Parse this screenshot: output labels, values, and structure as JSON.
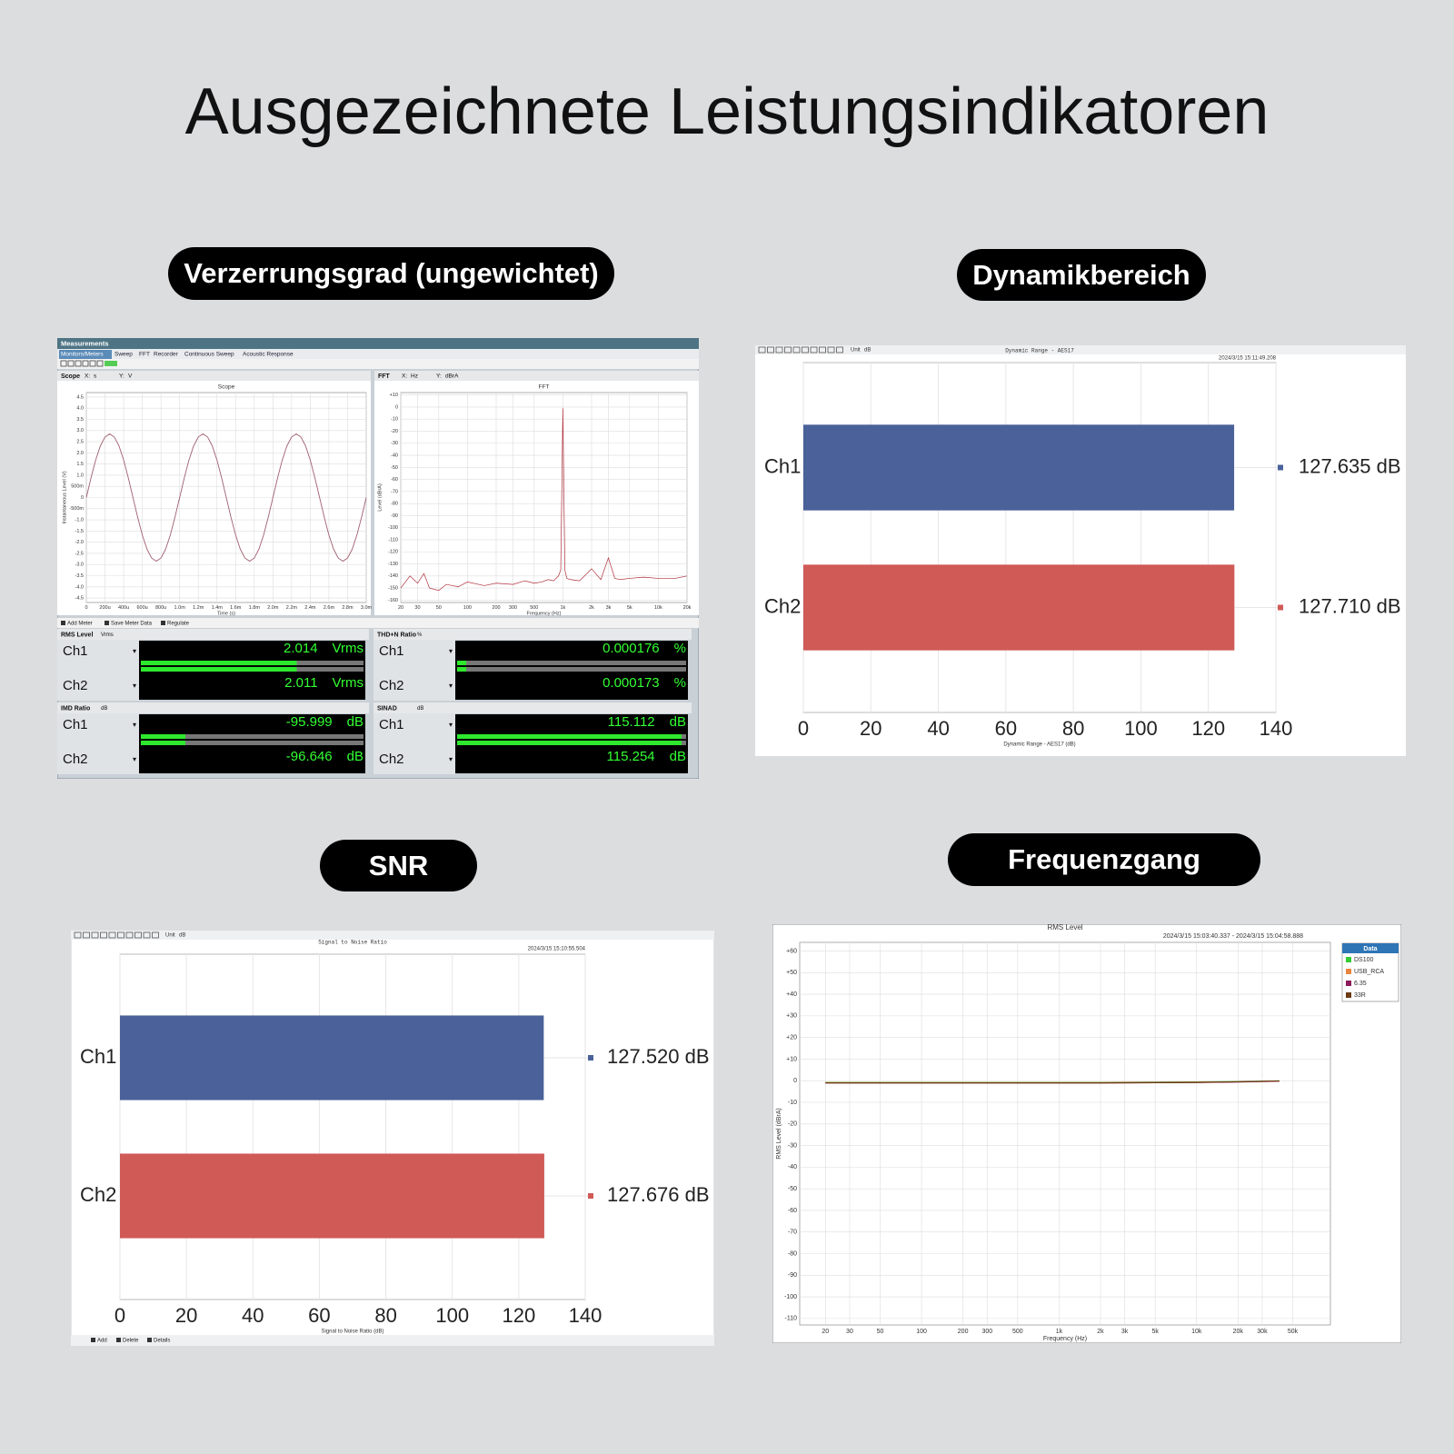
{
  "title": "Ausgezeichnete Leistungsindikatoren",
  "badges": [
    "Verzerrungsgrad (ungewichtet)",
    "Dynamikbereich",
    "SNR",
    "Frequenzgang"
  ],
  "meters": {
    "window_title": "Measurements",
    "tabs": [
      "Monitors/Meters",
      "Sweep",
      "FFT",
      "Recorder",
      "Continuous Sweep",
      "Acoustic Response"
    ],
    "toolbar": [
      "Add Meter",
      "Save Meter Data",
      "Regulate"
    ],
    "scope_header": {
      "name": "Scope",
      "x_label": "X:",
      "x_unit": "s",
      "y_label": "Y:",
      "y_unit": "V"
    },
    "fft_header": {
      "name": "FFT",
      "x_label": "X:",
      "x_unit": "Hz",
      "y_label": "Y:",
      "y_unit": "dBrA"
    },
    "items": [
      {
        "name": "RMS Level",
        "unit": "Vrms",
        "channels": [
          {
            "name": "Ch1",
            "value": 2.014
          },
          {
            "name": "Ch2",
            "value": 2.011
          }
        ]
      },
      {
        "name": "THD+N Ratio",
        "unit": "%",
        "channels": [
          {
            "name": "Ch1",
            "value": 0.000176
          },
          {
            "name": "Ch2",
            "value": 0.000173
          }
        ]
      },
      {
        "name": "IMD Ratio",
        "unit": "dB",
        "channels": [
          {
            "name": "Ch1",
            "value": -95.999
          },
          {
            "name": "Ch2",
            "value": -96.646
          }
        ]
      },
      {
        "name": "SINAD",
        "unit": "dB",
        "channels": [
          {
            "name": "Ch1",
            "value": 115.112
          },
          {
            "name": "Ch2",
            "value": 115.254
          }
        ]
      }
    ]
  },
  "dynamic_toolbar": {
    "label": "Unit",
    "value": "dB"
  },
  "snr_toolbar": {
    "label": "Unit",
    "value": "dB",
    "actions": [
      "Add",
      "Delete",
      "Details"
    ]
  },
  "chart_data": [
    {
      "type": "line",
      "title": "Scope",
      "xlabel": "Time (s)",
      "ylabel": "Instantaneous Level (V)",
      "color": "#a06070",
      "grid": true,
      "x": [
        0,
        5e-05,
        0.0001,
        0.00015,
        0.0002,
        0.00025,
        0.0003,
        0.00035,
        0.0004,
        0.00045,
        0.0005,
        0.00055,
        0.0006,
        0.00065,
        0.0007,
        0.00075,
        0.0008,
        0.00085,
        0.0009,
        0.00095,
        0.001,
        0.00105,
        0.0011,
        0.00115,
        0.0012,
        0.00125,
        0.0013,
        0.00135,
        0.0014,
        0.00145,
        0.0015,
        0.00155,
        0.0016,
        0.00165,
        0.0017,
        0.00175,
        0.0018,
        0.00185,
        0.0019,
        0.00195,
        0.002,
        0.00205,
        0.0021,
        0.00215,
        0.0022,
        0.00225,
        0.0023,
        0.00235,
        0.0024,
        0.00245,
        0.0025,
        0.00255,
        0.0026,
        0.00265,
        0.0027,
        0.00275,
        0.0028,
        0.00285,
        0.0029,
        0.00295,
        0.003
      ],
      "values": [
        0,
        0.88,
        1.68,
        2.31,
        2.71,
        2.85,
        2.71,
        2.31,
        1.68,
        0.88,
        0,
        -0.88,
        -1.68,
        -2.31,
        -2.71,
        -2.85,
        -2.71,
        -2.31,
        -1.68,
        -0.88,
        0,
        0.88,
        1.68,
        2.31,
        2.71,
        2.85,
        2.71,
        2.31,
        1.68,
        0.88,
        0,
        -0.88,
        -1.68,
        -2.31,
        -2.71,
        -2.85,
        -2.71,
        -2.31,
        -1.68,
        -0.88,
        0,
        0.88,
        1.68,
        2.31,
        2.71,
        2.85,
        2.71,
        2.31,
        1.68,
        0.88,
        0,
        -0.88,
        -1.68,
        -2.31,
        -2.71,
        -2.85,
        -2.71,
        -2.31,
        -1.68,
        -0.88,
        0
      ],
      "xlim": [
        0,
        0.003
      ],
      "ylim": [
        -4.7,
        4.7
      ],
      "xticks": [
        0,
        {
          "value": 0.0002,
          "label": "200u"
        },
        {
          "value": 0.0004,
          "label": "400u"
        },
        {
          "value": 0.0006,
          "label": "600u"
        },
        {
          "value": 0.0008,
          "label": "800u"
        },
        {
          "value": 0.001,
          "label": "1.0m"
        },
        {
          "value": 0.0012,
          "label": "1.2m"
        },
        {
          "value": 0.0014,
          "label": "1.4m"
        },
        {
          "value": 0.0016,
          "label": "1.6m"
        },
        {
          "value": 0.0018,
          "label": "1.8m"
        },
        {
          "value": 0.002,
          "label": "2.0m"
        },
        {
          "value": 0.0022,
          "label": "2.2m"
        },
        {
          "value": 0.0024,
          "label": "2.4m"
        },
        {
          "value": 0.0026,
          "label": "2.6m"
        },
        {
          "value": 0.0028,
          "label": "2.8m"
        },
        {
          "value": 0.003,
          "label": "3.0m"
        }
      ],
      "yticks": [
        4.5,
        {
          "value": 4,
          "label": "4.0"
        },
        3.5,
        {
          "value": 3,
          "label": "3.0"
        },
        2.5,
        {
          "value": 2,
          "label": "2.0"
        },
        1.5,
        {
          "value": 1,
          "label": "1.0"
        },
        {
          "value": 0.5,
          "label": "500m"
        },
        0,
        {
          "value": -0.5,
          "label": "-500m"
        },
        {
          "value": -1,
          "label": "-1.0"
        },
        -1.5,
        {
          "value": -2,
          "label": "-2.0"
        },
        -2.5,
        {
          "value": -3,
          "label": "-3.0"
        },
        -3.5,
        {
          "value": -4,
          "label": "-4.0"
        },
        -4.5
      ]
    },
    {
      "type": "line",
      "title": "FFT",
      "xlabel": "Frequency (Hz)",
      "ylabel": "Level (dBrA)",
      "color": "#b0303c",
      "grid": true,
      "log_x": true,
      "x": [
        20,
        25,
        30,
        35,
        40,
        50,
        60,
        80,
        100,
        150,
        200,
        300,
        400,
        500,
        600,
        700,
        800,
        900,
        950,
        1000,
        1050,
        1100,
        1200,
        1500,
        2000,
        2500,
        3000,
        3500,
        4000,
        5000,
        7000,
        10000,
        15000,
        20000
      ],
      "values": [
        -150,
        -140,
        -146,
        -138,
        -150,
        -152,
        -147,
        -149,
        -145,
        -148,
        -146,
        -147,
        -144,
        -146,
        -145,
        -143,
        -144,
        -140,
        -135,
        -1,
        -135,
        -142,
        -143,
        -144,
        -134,
        -143,
        -125,
        -142,
        -143,
        -142,
        -141,
        -142,
        -142,
        -140
      ],
      "xlim": [
        20,
        20000
      ],
      "ylim": [
        -162,
        12
      ],
      "xticks": [
        20,
        30,
        50,
        100,
        200,
        300,
        500,
        {
          "value": 1000,
          "label": "1k"
        },
        {
          "value": 2000,
          "label": "2k"
        },
        {
          "value": 3000,
          "label": "3k"
        },
        {
          "value": 5000,
          "label": "5k"
        },
        {
          "value": 10000,
          "label": "10k"
        },
        {
          "value": 20000,
          "label": "20k"
        }
      ],
      "yticks": [
        {
          "value": 10,
          "label": "+10"
        },
        0,
        -10,
        -20,
        -30,
        -40,
        -50,
        -60,
        -70,
        -80,
        -90,
        -100,
        -110,
        -120,
        -130,
        -140,
        -150,
        -160
      ]
    },
    {
      "type": "bar",
      "orientation": "horizontal",
      "title": "Dynamic Range - AES17",
      "subtitle": "2024/3/15 15:11:49.208",
      "xlabel": "Dynamic Range - AES17 (dB)",
      "grid": true,
      "categories": [
        "Ch1",
        "Ch2"
      ],
      "values": [
        127.635,
        127.71
      ],
      "value_labels": [
        "127.635 dB",
        "127.710 dB"
      ],
      "colors": [
        "#4a6199",
        "#d05a56"
      ],
      "xlim": [
        0,
        140
      ],
      "xticks": [
        0,
        20,
        40,
        60,
        80,
        100,
        120,
        140
      ]
    },
    {
      "type": "bar",
      "orientation": "horizontal",
      "title": "Signal to Noise Ratio",
      "subtitle": "2024/3/15 15:10:55.504",
      "xlabel": "Signal to Noise Ratio (dB)",
      "grid": true,
      "categories": [
        "Ch1",
        "Ch2"
      ],
      "values": [
        127.52,
        127.676
      ],
      "value_labels": [
        "127.520 dB",
        "127.676 dB"
      ],
      "colors": [
        "#4a6199",
        "#d05a56"
      ],
      "xlim": [
        0,
        140
      ],
      "xticks": [
        0,
        20,
        40,
        60,
        80,
        100,
        120,
        140
      ]
    },
    {
      "type": "line",
      "title": "RMS Level",
      "subtitle": "2024/3/15 15:03:40.337 -  2024/3/15 15:04:58.888",
      "xlabel": "Frequency (Hz)",
      "ylabel": "RMS Level (dBrA)",
      "grid": true,
      "log_x": true,
      "legend_title": "Data",
      "legend": "right",
      "x": [
        20,
        30,
        50,
        100,
        200,
        500,
        1000,
        2000,
        5000,
        10000,
        20000,
        40000
      ],
      "series": [
        {
          "name": "DS100",
          "color": "#33cc33",
          "values": [
            -0.8,
            -0.8,
            -0.8,
            -0.8,
            -0.8,
            -0.8,
            -0.8,
            -0.8,
            -0.7,
            -0.6,
            -0.4,
            -0.1
          ]
        },
        {
          "name": "USB_RCA",
          "color": "#e8843c",
          "values": [
            -0.9,
            -0.9,
            -0.9,
            -0.9,
            -0.9,
            -0.9,
            -0.9,
            -0.9,
            -0.8,
            -0.7,
            -0.5,
            -0.2
          ]
        },
        {
          "name": "6.35",
          "color": "#8b1a5a",
          "values": [
            -1,
            -1,
            -1,
            -1,
            -1,
            -1,
            -1,
            -1,
            -0.9,
            -0.8,
            -0.6,
            -0.2
          ]
        },
        {
          "name": "33R",
          "color": "#6b3a10",
          "values": [
            -1,
            -1,
            -1,
            -1,
            -1,
            -1,
            -1,
            -1,
            -0.9,
            -0.8,
            -0.5,
            -0.1
          ]
        }
      ],
      "xlim": [
        13,
        94000
      ],
      "ylim": [
        -113,
        64
      ],
      "xticks": [
        20,
        30,
        50,
        100,
        200,
        300,
        500,
        {
          "value": 1000,
          "label": "1k"
        },
        {
          "value": 2000,
          "label": "2k"
        },
        {
          "value": 3000,
          "label": "3k"
        },
        {
          "value": 5000,
          "label": "5k"
        },
        {
          "value": 10000,
          "label": "10k"
        },
        {
          "value": 20000,
          "label": "20k"
        },
        {
          "value": 30000,
          "label": "30k"
        },
        {
          "value": 50000,
          "label": "50k"
        }
      ],
      "yticks": [
        {
          "value": 60,
          "label": "+60"
        },
        {
          "value": 50,
          "label": "+50"
        },
        {
          "value": 40,
          "label": "+40"
        },
        {
          "value": 30,
          "label": "+30"
        },
        {
          "value": 20,
          "label": "+20"
        },
        {
          "value": 10,
          "label": "+10"
        },
        0,
        -10,
        -20,
        -30,
        -40,
        -50,
        -60,
        -70,
        -80,
        -90,
        -100,
        -110
      ]
    }
  ]
}
